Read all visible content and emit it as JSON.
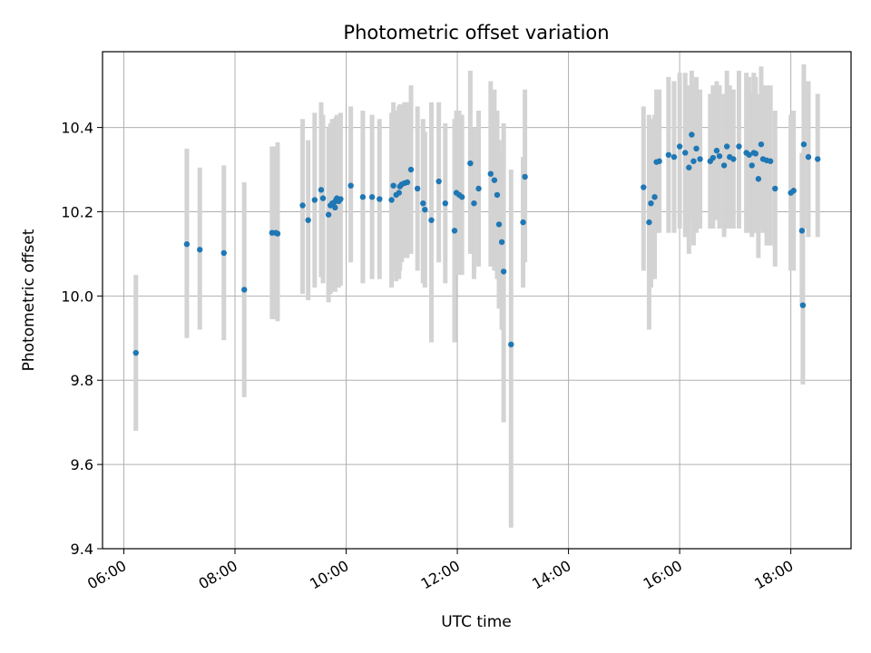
{
  "chart_data": {
    "type": "scatter",
    "title": "Photometric offset variation",
    "xlabel": "UTC time",
    "ylabel": "Photometric offset",
    "xlim": [
      "05:37",
      "19:05"
    ],
    "ylim": [
      9.4,
      10.58
    ],
    "x_ticks": [
      "06:00",
      "08:00",
      "10:00",
      "12:00",
      "14:00",
      "16:00",
      "18:00"
    ],
    "y_ticks": [
      "9.4",
      "9.6",
      "9.8",
      "10.0",
      "10.2",
      "10.4"
    ],
    "grid": true,
    "marker_color": "#1f77b4",
    "errorbar_color": "#d3d3d3",
    "x": [
      "06:13",
      "07:08",
      "07:22",
      "07:48",
      "08:10",
      "08:40",
      "08:44",
      "08:46",
      "09:13",
      "09:19",
      "09:26",
      "09:33",
      "09:35",
      "09:41",
      "09:43",
      "09:45",
      "09:47",
      "09:48",
      "09:49",
      "09:50",
      "09:52",
      "09:54",
      "10:05",
      "10:18",
      "10:28",
      "10:36",
      "10:49",
      "10:51",
      "10:54",
      "10:57",
      "10:58",
      "11:00",
      "11:03",
      "11:06",
      "11:10",
      "11:17",
      "11:23",
      "11:25",
      "11:32",
      "11:40",
      "11:47",
      "11:57",
      "11:59",
      "12:02",
      "12:05",
      "12:14",
      "12:18",
      "12:23",
      "12:36",
      "12:40",
      "12:43",
      "12:45",
      "12:48",
      "12:50",
      "12:58",
      "13:11",
      "13:13",
      "15:21",
      "15:27",
      "15:29",
      "15:33",
      "15:35",
      "15:38",
      "15:48",
      "15:54",
      "16:00",
      "16:06",
      "16:10",
      "16:13",
      "16:15",
      "16:18",
      "16:22",
      "16:33",
      "16:36",
      "16:40",
      "16:43",
      "16:48",
      "16:51",
      "16:54",
      "16:58",
      "17:04",
      "17:12",
      "17:15",
      "17:18",
      "17:20",
      "17:22",
      "17:25",
      "17:28",
      "17:30",
      "17:34",
      "17:38",
      "17:43",
      "18:00",
      "18:03",
      "18:12",
      "18:13",
      "18:14",
      "18:19",
      "18:29"
    ],
    "y": [
      9.865,
      10.123,
      10.11,
      10.102,
      10.015,
      10.15,
      10.15,
      10.148,
      10.215,
      10.18,
      10.228,
      10.252,
      10.232,
      10.193,
      10.215,
      10.22,
      10.222,
      10.21,
      10.228,
      10.232,
      10.225,
      10.23,
      10.262,
      10.235,
      10.235,
      10.23,
      10.228,
      10.262,
      10.24,
      10.245,
      10.26,
      10.265,
      10.268,
      10.27,
      10.3,
      10.255,
      10.22,
      10.205,
      10.18,
      10.272,
      10.22,
      10.155,
      10.245,
      10.24,
      10.235,
      10.315,
      10.22,
      10.255,
      10.29,
      10.275,
      10.24,
      10.17,
      10.128,
      10.058,
      9.885,
      10.175,
      10.283,
      10.258,
      10.175,
      10.22,
      10.235,
      10.318,
      10.32,
      10.335,
      10.33,
      10.355,
      10.34,
      10.305,
      10.383,
      10.32,
      10.35,
      10.325,
      10.32,
      10.328,
      10.345,
      10.332,
      10.31,
      10.355,
      10.33,
      10.325,
      10.355,
      10.34,
      10.335,
      10.31,
      10.34,
      10.338,
      10.278,
      10.36,
      10.325,
      10.322,
      10.32,
      10.255,
      10.245,
      10.25,
      10.155,
      9.978,
      10.36,
      10.33,
      10.325
    ],
    "y_low": [
      9.68,
      9.9,
      9.92,
      9.895,
      9.76,
      9.945,
      9.945,
      9.94,
      10.005,
      9.99,
      10.02,
      10.045,
      10.03,
      9.985,
      10.005,
      10.01,
      10.02,
      10.01,
      10.03,
      10.03,
      10.02,
      10.025,
      10.08,
      10.03,
      10.04,
      10.04,
      10.02,
      10.06,
      10.035,
      10.04,
      10.06,
      10.08,
      10.09,
      10.09,
      10.1,
      10.06,
      10.03,
      10.02,
      9.89,
      10.08,
      10.03,
      9.89,
      10.05,
      10.05,
      10.05,
      10.1,
      10.04,
      10.07,
      10.07,
      10.06,
      10.04,
      9.97,
      9.92,
      9.7,
      9.45,
      10.02,
      10.08,
      10.06,
      9.92,
      10.02,
      10.04,
      10.15,
      10.15,
      10.15,
      10.15,
      10.16,
      10.14,
      10.1,
      10.18,
      10.12,
      10.15,
      10.16,
      10.16,
      10.16,
      10.18,
      10.16,
      10.14,
      10.16,
      10.16,
      10.16,
      10.16,
      10.15,
      10.15,
      10.14,
      10.15,
      10.15,
      10.09,
      10.16,
      10.15,
      10.12,
      10.12,
      10.07,
      10.06,
      10.06,
      9.98,
      9.79,
      10.16,
      10.14,
      10.14
    ],
    "y_high": [
      10.05,
      10.35,
      10.305,
      10.31,
      10.27,
      10.355,
      10.355,
      10.365,
      10.42,
      10.37,
      10.435,
      10.46,
      10.43,
      10.4,
      10.41,
      10.42,
      10.42,
      10.405,
      10.425,
      10.43,
      10.425,
      10.435,
      10.45,
      10.44,
      10.43,
      10.42,
      10.435,
      10.46,
      10.44,
      10.45,
      10.455,
      10.455,
      10.46,
      10.46,
      10.5,
      10.45,
      10.42,
      10.39,
      10.46,
      10.46,
      10.41,
      10.42,
      10.44,
      10.44,
      10.43,
      10.535,
      10.4,
      10.44,
      10.51,
      10.49,
      10.44,
      10.37,
      10.34,
      10.41,
      10.3,
      10.33,
      10.49,
      10.45,
      10.43,
      10.42,
      10.43,
      10.49,
      10.49,
      10.52,
      10.51,
      10.53,
      10.53,
      10.5,
      10.535,
      10.5,
      10.52,
      10.49,
      10.48,
      10.5,
      10.51,
      10.5,
      10.48,
      10.535,
      10.5,
      10.49,
      10.535,
      10.53,
      10.52,
      10.48,
      10.53,
      10.52,
      10.48,
      10.545,
      10.5,
      10.5,
      10.5,
      10.44,
      10.43,
      10.44,
      10.34,
      10.16,
      10.55,
      10.51,
      10.48
    ]
  }
}
